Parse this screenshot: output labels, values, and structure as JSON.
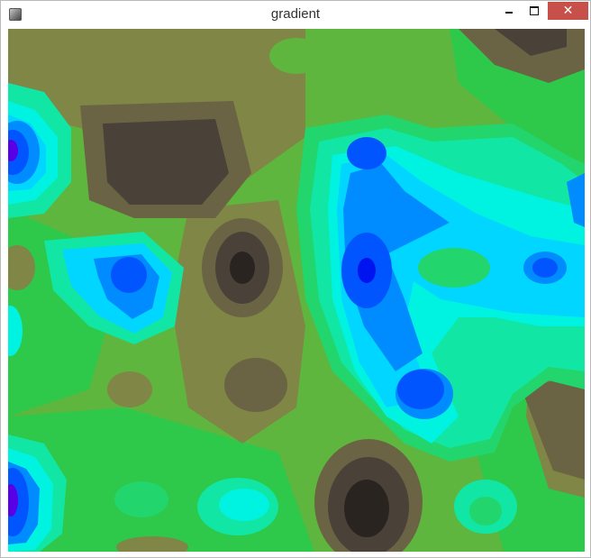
{
  "window": {
    "title": "gradient",
    "icon": "app-icon",
    "controls": {
      "minimize": "minimize-icon",
      "maximize": "maximize-icon",
      "close": "close-icon"
    },
    "close_symbol": "✕",
    "close_color": "#c7504b"
  },
  "canvas": {
    "content": "contour-gradient-field",
    "palette": [
      "#2a2421",
      "#4a4139",
      "#6b6444",
      "#7f8646",
      "#5fb63e",
      "#2ec84a",
      "#22d56c",
      "#12e6a4",
      "#00f3e0",
      "#00d6ff",
      "#008cff",
      "#0055ff",
      "#0014ef",
      "#5a00e6"
    ]
  }
}
